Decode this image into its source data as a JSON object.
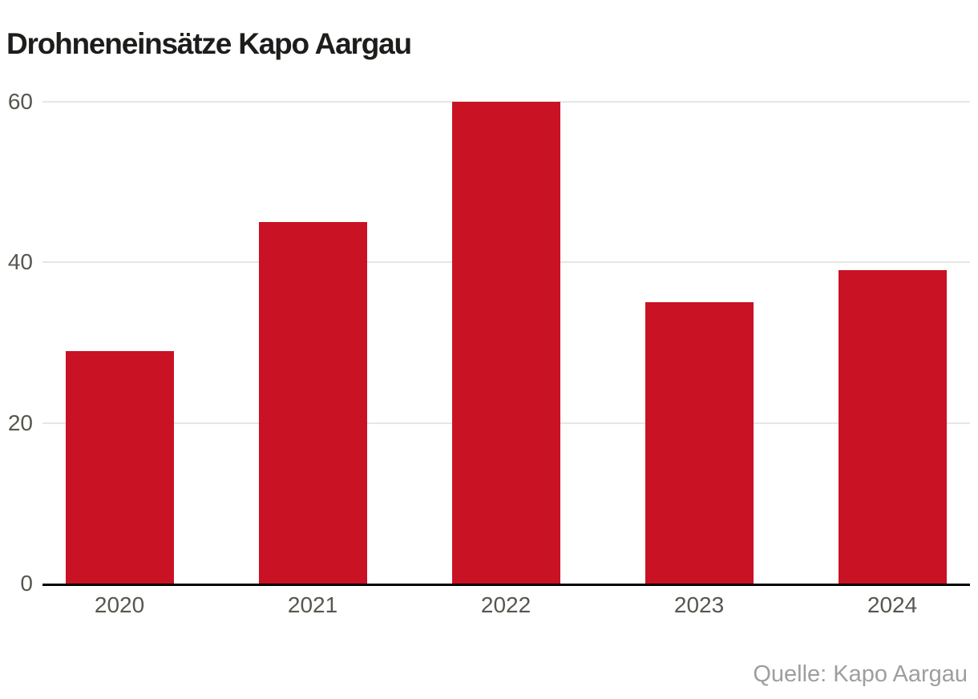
{
  "page": {
    "title": "Drohneneinsätze Kapo Aargau",
    "source": "Quelle: Kapo Aargau"
  },
  "chart_data": {
    "type": "bar",
    "title": "Drohneneinsätze Kapo Aargau",
    "categories": [
      "2020",
      "2021",
      "2022",
      "2023",
      "2024"
    ],
    "values": [
      29,
      45,
      60,
      35,
      39
    ],
    "xlabel": "",
    "ylabel": "",
    "yticks": [
      0,
      20,
      40,
      60
    ],
    "ytick_labels": [
      "0",
      "20",
      "40",
      "60"
    ],
    "ylim": [
      0,
      60
    ],
    "grid": "horizontal",
    "legend": "none",
    "source": "Quelle: Kapo Aargau",
    "colors": {
      "bar": "#c91224",
      "gridline": "#e6e6e6",
      "axis": "#000000",
      "tick_label": "#57564f",
      "title": "#1d1d1b",
      "source": "#9e9e9d",
      "background": "#ffffff"
    }
  }
}
